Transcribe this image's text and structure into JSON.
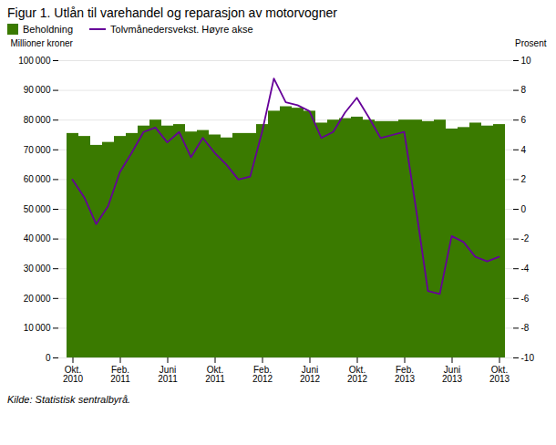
{
  "chart_data": {
    "type": "bar",
    "title": "Figur 1. Utlån til varehandel og reparasjon av motorvogner",
    "y_label": "Millioner kroner",
    "y2_label": "Prosent",
    "source": "Kilde: Statistisk sentralbyrå.",
    "categories": [
      "Okt.\n2010",
      null,
      null,
      null,
      "Feb.\n2011",
      null,
      null,
      null,
      "Juni\n2011",
      null,
      null,
      null,
      "Okt.\n2011",
      null,
      null,
      null,
      "Feb.\n2012",
      null,
      null,
      null,
      "Juni\n2012",
      null,
      null,
      null,
      "Okt.\n2012",
      null,
      null,
      null,
      "Feb.\n2013",
      null,
      null,
      null,
      "Juni\n2013",
      null,
      null,
      null,
      "Okt.\n2013"
    ],
    "series": [
      {
        "name": "Beholdning",
        "type": "bar",
        "color": "#3a7a00",
        "values": [
          75500,
          74500,
          71500,
          72500,
          74500,
          75500,
          78000,
          80000,
          78000,
          78500,
          76000,
          76500,
          75000,
          74000,
          75500,
          75500,
          78500,
          83000,
          84500,
          84000,
          83000,
          79000,
          80000,
          80500,
          81000,
          80000,
          79500,
          79500,
          80000,
          80000,
          79500,
          80000,
          77000,
          77500,
          79000,
          78000,
          78500
        ]
      },
      {
        "name": "Tolvmånedersvekst. Høyre akse",
        "type": "line",
        "color": "#660099",
        "axis": "y2",
        "values": [
          2.0,
          0.8,
          -1.0,
          0.2,
          2.5,
          3.8,
          5.2,
          5.5,
          4.5,
          5.2,
          3.5,
          4.8,
          3.8,
          3.0,
          2.0,
          2.2,
          5.2,
          8.8,
          7.2,
          7.0,
          6.6,
          4.8,
          5.2,
          6.5,
          7.5,
          6.2,
          4.8,
          5.0,
          5.2,
          0.0,
          -5.5,
          -5.7,
          -1.8,
          -2.2,
          -3.2,
          -3.5,
          -3.2
        ]
      }
    ],
    "ylim": [
      0,
      100000
    ],
    "yticks": [
      0,
      {
        "value": 10000,
        "label": "10 000"
      },
      {
        "value": 20000,
        "label": "20 000"
      },
      {
        "value": 30000,
        "label": "30 000"
      },
      {
        "value": 40000,
        "label": "40 000"
      },
      {
        "value": 50000,
        "label": "50 000"
      },
      {
        "value": 60000,
        "label": "60 000"
      },
      {
        "value": 70000,
        "label": "70 000"
      },
      {
        "value": 80000,
        "label": "80 000"
      },
      {
        "value": 90000,
        "label": "90 000"
      },
      {
        "value": 100000,
        "label": "100 000"
      }
    ],
    "y2lim": [
      -10,
      10
    ],
    "y2ticks": [
      -10,
      -8,
      -6,
      -4,
      -2,
      0,
      2,
      4,
      6,
      8,
      10
    ],
    "grid": true,
    "legend": "upper left"
  }
}
